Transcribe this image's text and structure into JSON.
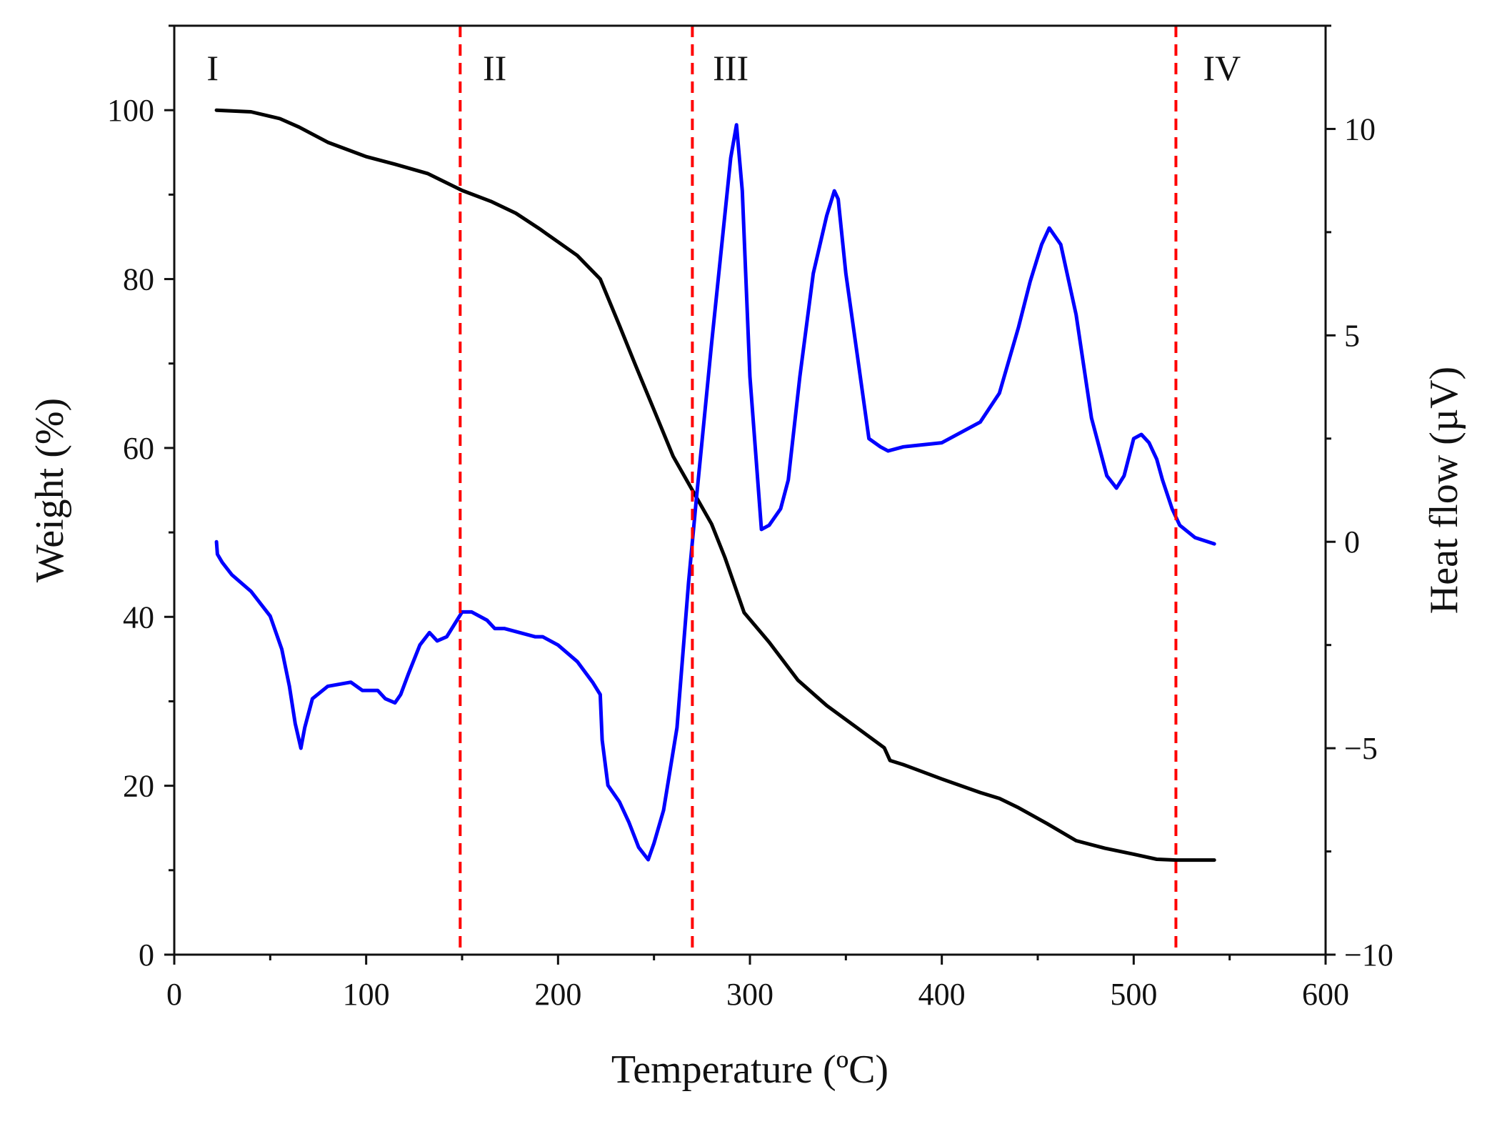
{
  "chart_data": {
    "type": "line",
    "title": "",
    "xlabel": "Temperature (ºC)",
    "ylabel": "Weight (%)",
    "y2label": "Heat flow (µV)",
    "xlim": [
      0,
      600
    ],
    "ylim": [
      0,
      110
    ],
    "y2lim": [
      -10,
      12.5
    ],
    "x_ticks": [
      0,
      100,
      200,
      300,
      400,
      500,
      600
    ],
    "x_tick_labels": [
      "0",
      "100",
      "200",
      "300",
      "400",
      "500",
      "600"
    ],
    "y_ticks": [
      0,
      20,
      40,
      60,
      80,
      100
    ],
    "y_tick_labels": [
      "0",
      "20",
      "40",
      "60",
      "80",
      "100"
    ],
    "y2_ticks": [
      -10,
      -5,
      0,
      5,
      10
    ],
    "y2_tick_labels": [
      "−10",
      "−5",
      "0",
      "5",
      "10"
    ],
    "grid": false,
    "legend": "none",
    "region_lines": {
      "x": [
        149,
        270,
        522
      ],
      "color": "#ff0000",
      "style": "dashed"
    },
    "region_labels": [
      {
        "text": "I",
        "x": 20
      },
      {
        "text": "II",
        "x": 167
      },
      {
        "text": "III",
        "x": 290
      },
      {
        "text": "IV",
        "x": 546
      }
    ],
    "series": [
      {
        "name": "Weight",
        "axis": "left",
        "color": "#000000",
        "x": [
          22,
          40,
          55,
          65,
          80,
          100,
          115,
          132,
          150,
          165,
          178,
          190,
          200,
          210,
          222,
          232,
          240,
          250,
          260,
          270,
          280,
          287,
          297,
          310,
          325,
          340,
          355,
          370,
          373,
          380,
          400,
          420,
          430,
          440,
          455,
          470,
          485,
          500,
          512,
          522,
          542
        ],
        "values": [
          100,
          99.8,
          99.0,
          98.0,
          96.2,
          94.5,
          93.6,
          92.5,
          90.5,
          89.2,
          87.8,
          86.0,
          84.4,
          82.8,
          80.0,
          74.5,
          70.0,
          64.5,
          59.0,
          55.0,
          51.0,
          47.0,
          40.5,
          37.0,
          32.5,
          29.5,
          27.0,
          24.5,
          23.0,
          22.5,
          20.8,
          19.2,
          18.5,
          17.4,
          15.5,
          13.5,
          12.6,
          11.9,
          11.3,
          11.2,
          11.2
        ]
      },
      {
        "name": "Heat flow",
        "axis": "right",
        "color": "#0000ff",
        "x": [
          22,
          22.5,
          25,
          30,
          40,
          50,
          56,
          60,
          63,
          66,
          68,
          72,
          80,
          92,
          98,
          102,
          106,
          110,
          115,
          118,
          122,
          128,
          133,
          137,
          142,
          150,
          155,
          163,
          167,
          172,
          180,
          188,
          192,
          200,
          210,
          218,
          222,
          223,
          226,
          232,
          237,
          242,
          247,
          250,
          255,
          262,
          268,
          272,
          280,
          286,
          290,
          293,
          296,
          300,
          306,
          310,
          316,
          320,
          326,
          333,
          340,
          344,
          346,
          350,
          356,
          362,
          368,
          372,
          380,
          400,
          420,
          430,
          440,
          446,
          452,
          456,
          462,
          470,
          478,
          486,
          491,
          495,
          500,
          504,
          508,
          512,
          515,
          520,
          524,
          532,
          542
        ],
        "values": [
          0,
          -0.3,
          -0.5,
          -0.8,
          -1.2,
          -1.8,
          -2.6,
          -3.5,
          -4.4,
          -5.0,
          -4.5,
          -3.8,
          -3.5,
          -3.4,
          -3.6,
          -3.6,
          -3.6,
          -3.8,
          -3.9,
          -3.7,
          -3.2,
          -2.5,
          -2.2,
          -2.4,
          -2.3,
          -1.7,
          -1.7,
          -1.9,
          -2.1,
          -2.1,
          -2.2,
          -2.3,
          -2.3,
          -2.5,
          -2.9,
          -3.4,
          -3.7,
          -4.8,
          -5.9,
          -6.3,
          -6.8,
          -7.4,
          -7.7,
          -7.3,
          -6.5,
          -4.5,
          -1.0,
          1.0,
          4.8,
          7.5,
          9.3,
          10.1,
          8.5,
          4.0,
          0.3,
          0.4,
          0.8,
          1.5,
          4.0,
          6.5,
          7.9,
          8.5,
          8.3,
          6.5,
          4.5,
          2.5,
          2.3,
          2.2,
          2.3,
          2.4,
          2.9,
          3.6,
          5.2,
          6.3,
          7.2,
          7.6,
          7.2,
          5.5,
          3.0,
          1.6,
          1.3,
          1.6,
          2.5,
          2.6,
          2.4,
          2.0,
          1.5,
          0.8,
          0.4,
          0.1,
          -0.05
        ]
      }
    ]
  }
}
